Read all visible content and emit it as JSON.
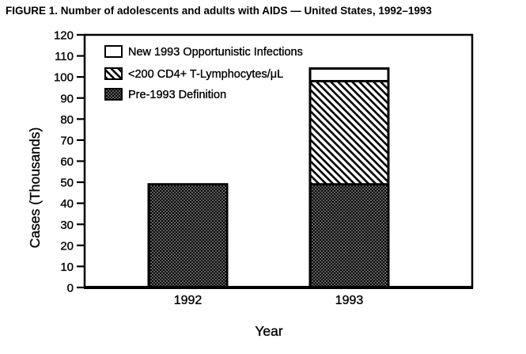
{
  "figure_title": "FIGURE 1. Number of adolescents and adults with AIDS — United States, 1992–1993",
  "chart_data": {
    "type": "bar",
    "stacked": true,
    "title": "FIGURE 1. Number of adolescents and adults with AIDS — United States, 1992–1993",
    "xlabel": "Year",
    "ylabel": "Cases (Thousands)",
    "categories": [
      "1992",
      "1993"
    ],
    "series": [
      {
        "name": "Pre-1993 Definition",
        "fill": "stipple",
        "values": [
          49,
          49
        ]
      },
      {
        "name": "<200 CD4+ T-Lymphocytes/μL",
        "fill": "hatch",
        "values": [
          0,
          49
        ]
      },
      {
        "name": "New 1993 Opportunistic Infections",
        "fill": "white",
        "values": [
          0,
          6
        ]
      }
    ],
    "stack_totals": [
      49,
      104
    ],
    "ylim": [
      0,
      120
    ],
    "ytick_step": 10,
    "yticks": [
      0,
      10,
      20,
      30,
      40,
      50,
      60,
      70,
      80,
      90,
      100,
      110,
      120
    ],
    "grid": false,
    "legend": {
      "position": "inside-top-left",
      "entries": [
        {
          "label": "New 1993 Opportunistic Infections",
          "fill": "white"
        },
        {
          "label": "<200 CD4+ T-Lymphocytes/μL",
          "fill": "hatch"
        },
        {
          "label": "Pre-1993 Definition",
          "fill": "stipple"
        }
      ]
    },
    "colors": {
      "ink": "#000000",
      "background": "#ffffff"
    }
  }
}
